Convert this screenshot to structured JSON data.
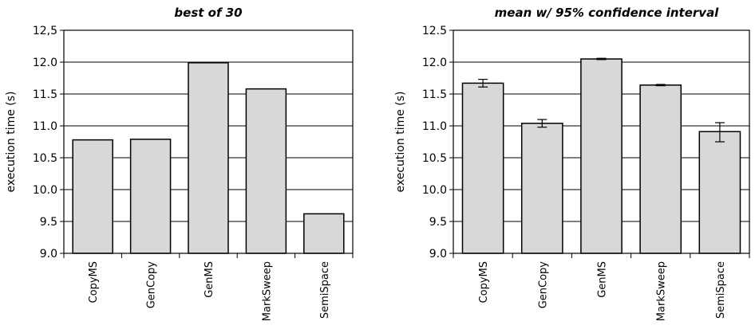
{
  "chart_data": [
    {
      "type": "bar",
      "title": "best of 30",
      "ylabel": "execution time (s)",
      "xlabel": "",
      "categories": [
        "CopyMS",
        "GenCopy",
        "GenMS",
        "MarkSweep",
        "SemiSpace"
      ],
      "values": [
        10.78,
        10.79,
        11.99,
        11.58,
        9.62
      ],
      "ylim": [
        9.0,
        12.5
      ],
      "yticks": [
        "9.0",
        "9.5",
        "10.0",
        "10.5",
        "11.0",
        "11.5",
        "12.0",
        "12,5"
      ],
      "grid": true,
      "bar_color": "#d8d8d8"
    },
    {
      "type": "bar",
      "title": "mean w/ 95% confidence interval",
      "ylabel": "execution time (s)",
      "xlabel": "",
      "categories": [
        "CopyMS",
        "GenCopy",
        "GenMS",
        "MarkSweep",
        "SemiSpace"
      ],
      "values": [
        11.67,
        11.04,
        12.05,
        11.64,
        10.91
      ],
      "error_low": [
        11.61,
        10.98,
        12.04,
        11.63,
        10.75
      ],
      "error_high": [
        11.73,
        11.1,
        12.06,
        11.65,
        11.05
      ],
      "ylim": [
        9.0,
        12.5
      ],
      "yticks": [
        "9.0",
        "9.5",
        "10.0",
        "10.5",
        "11.0",
        "11.5",
        "12.0",
        "12.5"
      ],
      "grid": true,
      "bar_color": "#d8d8d8"
    }
  ]
}
